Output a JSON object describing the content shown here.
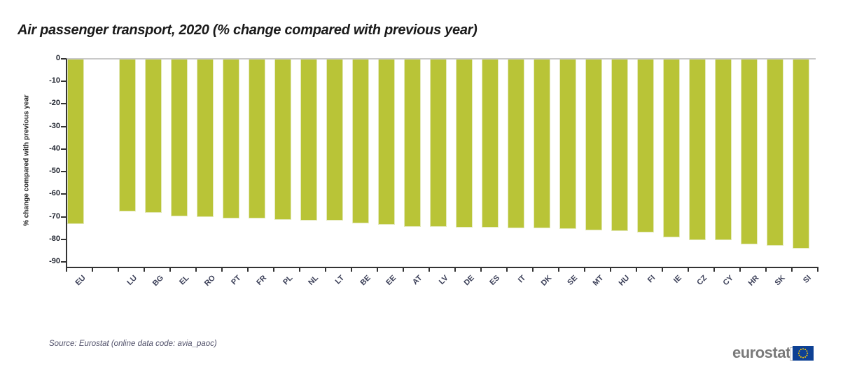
{
  "title": "Air passenger transport, 2020 (% change compared with previous year)",
  "source_note": "Source: Eurostat (online data code: avia_paoc)",
  "logo": {
    "text": "eurostat",
    "flag_icon": "eu-flag-icon"
  },
  "colors": {
    "bar_fill": "#b9c437",
    "bar_edge": "#e4e9bb",
    "axis": "#333333",
    "zero_gridline": "#c9c9c9",
    "x_label_text": "#3b3f58",
    "eurostat_gray": "#7a7a7a",
    "eu_flag_blue": "#0e4194",
    "eu_star_yellow": "#ffcc00"
  },
  "chart_data": {
    "type": "bar",
    "title": "Air passenger transport, 2020 (% change compared with previous year)",
    "xlabel": "",
    "ylabel": "% change compared with previous year",
    "ylim": [
      -90,
      0
    ],
    "ytick_labels": [
      "0",
      "-10",
      "-20",
      "-30",
      "-40",
      "-50",
      "-60",
      "-70",
      "-80",
      "-90"
    ],
    "ytick_values": [
      0,
      -10,
      -20,
      -30,
      -40,
      -50,
      -60,
      -70,
      -80,
      -90
    ],
    "grid": "zero-line-only",
    "legend_position": "none",
    "gap_after_first_bar": true,
    "categories": [
      "EU",
      "LU",
      "BG",
      "EL",
      "RO",
      "PT",
      "FR",
      "PL",
      "NL",
      "LT",
      "BE",
      "EE",
      "AT",
      "LV",
      "DE",
      "ES",
      "IT",
      "DK",
      "SE",
      "MT",
      "HU",
      "FI",
      "IE",
      "CZ",
      "CY",
      "HR",
      "SK",
      "SI"
    ],
    "values": [
      -73.3,
      -67.6,
      -68.3,
      -69.9,
      -70.0,
      -70.8,
      -70.9,
      -71.3,
      -71.6,
      -71.8,
      -72.9,
      -73.7,
      -74.5,
      -74.6,
      -74.8,
      -74.9,
      -75.0,
      -75.2,
      -75.4,
      -76.0,
      -76.2,
      -77.1,
      -79.2,
      -80.3,
      -80.5,
      -82.3,
      -83.0,
      -84.0
    ]
  }
}
